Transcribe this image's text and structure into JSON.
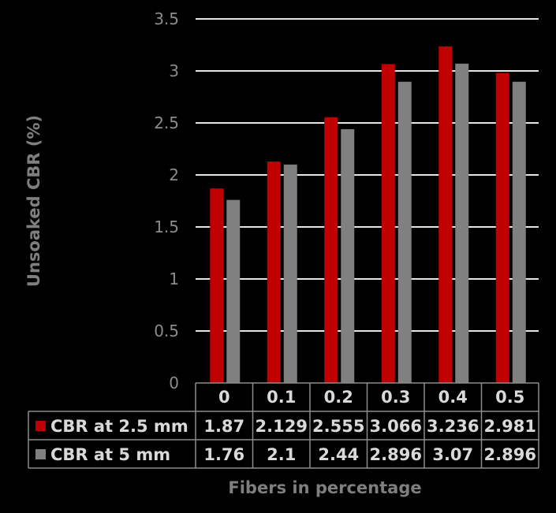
{
  "chart_data": {
    "type": "bar",
    "categories": [
      "0",
      "0.1",
      "0.2",
      "0.3",
      "0.4",
      "0.5"
    ],
    "series": [
      {
        "name": "CBR at 2.5 mm",
        "values": [
          1.87,
          2.129,
          2.555,
          3.066,
          3.236,
          2.981
        ],
        "labels": [
          "1.87",
          "2.129",
          "2.555",
          "3.066",
          "3.236",
          "2.981"
        ],
        "color": "#c00000"
      },
      {
        "name": "CBR at 5 mm",
        "values": [
          1.76,
          2.1,
          2.44,
          2.896,
          3.07,
          2.896
        ],
        "labels": [
          "1.76",
          "2.1",
          "2.44",
          "2.896",
          "3.07",
          "2.896"
        ],
        "color": "#808080"
      }
    ],
    "yticks": [
      "0",
      "0.5",
      "1",
      "1.5",
      "2",
      "2.5",
      "3",
      "3.5"
    ],
    "ylim": [
      0,
      3.5
    ],
    "xlabel": "Fibers in percentage",
    "ylabel": "Unsoaked CBR (%)",
    "grid": true,
    "legend": "data-table",
    "background": "#000000"
  }
}
